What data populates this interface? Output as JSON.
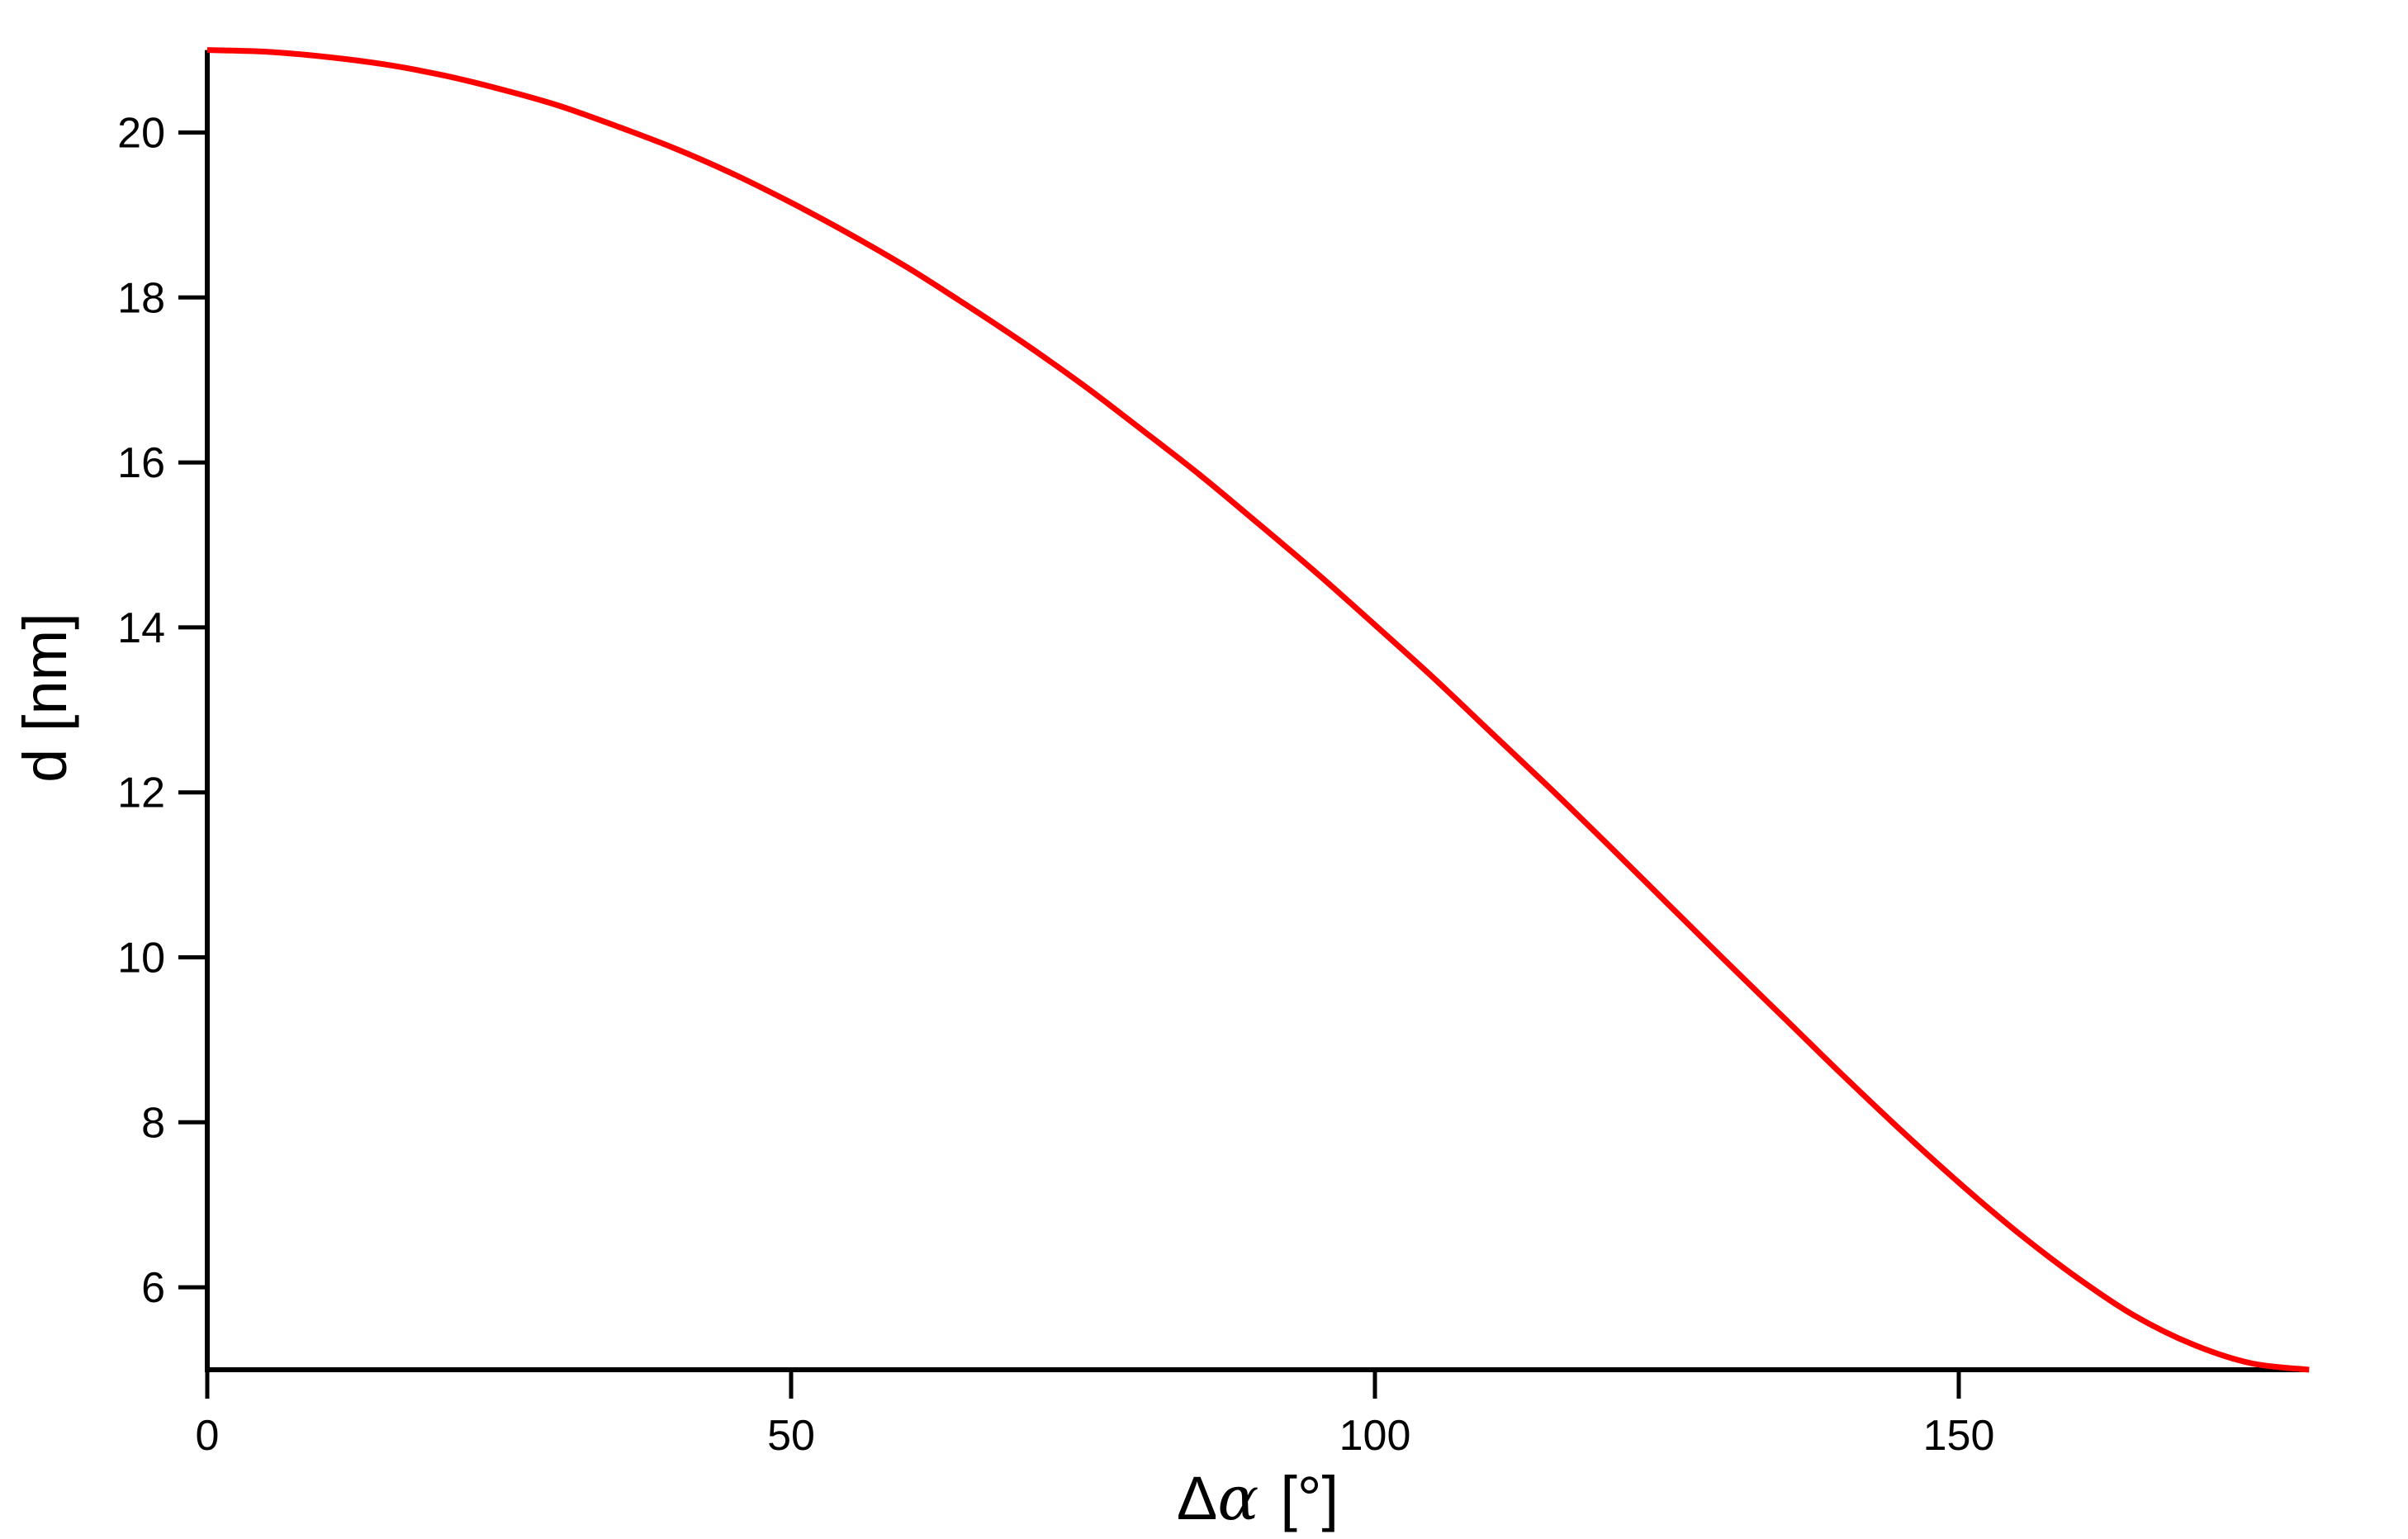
{
  "figure": {
    "background": "#ffffff"
  },
  "chart_data": {
    "type": "line",
    "title": "",
    "xlabel": "Δα [°]",
    "xlabel_delta": "Δ",
    "xlabel_alpha": "α",
    "xlabel_unit": "[°]",
    "ylabel": "d [nm]",
    "xlim": [
      0,
      180
    ],
    "ylim": [
      5,
      21
    ],
    "x_ticks": [
      0,
      50,
      100,
      150
    ],
    "y_ticks": [
      6,
      8,
      10,
      12,
      14,
      16,
      18,
      20
    ],
    "grid": false,
    "legend": "none",
    "axis_color": "#000000",
    "series": [
      {
        "name": "d",
        "color": "#ff0000",
        "x": [
          0,
          5,
          10,
          15,
          20,
          25,
          30,
          35,
          40,
          45,
          50,
          55,
          60,
          65,
          70,
          75,
          80,
          85,
          90,
          95,
          100,
          105,
          110,
          115,
          120,
          125,
          130,
          135,
          140,
          145,
          150,
          155,
          160,
          165,
          170,
          175,
          180
        ],
        "y": [
          21.0,
          20.98,
          20.92,
          20.83,
          20.7,
          20.53,
          20.33,
          20.08,
          19.81,
          19.5,
          19.15,
          18.77,
          18.36,
          17.91,
          17.44,
          16.94,
          16.4,
          15.85,
          15.26,
          14.66,
          14.03,
          13.39,
          12.72,
          12.05,
          11.36,
          10.66,
          9.96,
          9.27,
          8.58,
          7.91,
          7.27,
          6.67,
          6.13,
          5.66,
          5.31,
          5.08,
          5.0
        ]
      }
    ]
  }
}
